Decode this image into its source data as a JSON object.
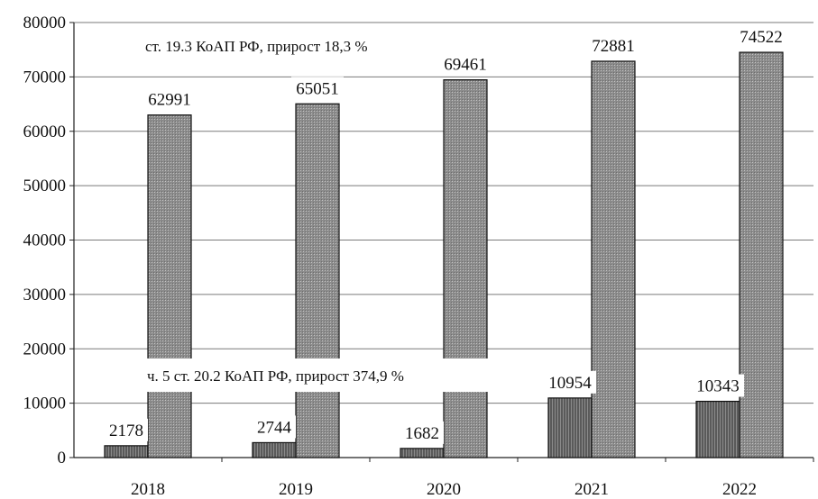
{
  "chart_data": {
    "type": "bar",
    "title": "",
    "xlabel": "",
    "ylabel": "",
    "categories": [
      "2018",
      "2019",
      "2020",
      "2021",
      "2022"
    ],
    "ylim": [
      0,
      80000
    ],
    "yticks": [
      0,
      10000,
      20000,
      30000,
      40000,
      50000,
      60000,
      70000,
      80000
    ],
    "grid": true,
    "legend": "none",
    "series": [
      {
        "values": [
          2178,
          2744,
          1682,
          10954,
          10343
        ],
        "color": "#6f6f6f"
      },
      {
        "values": [
          62991,
          65051,
          69461,
          72881,
          74522
        ],
        "color": "#9a9a9a"
      }
    ],
    "annotations": [
      "ст. 19.3 КоАП РФ, прирост 18,3 %",
      "ч. 5 ст. 20.2 КоАП РФ, прирост 374,9 %"
    ]
  }
}
